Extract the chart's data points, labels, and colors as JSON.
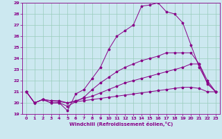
{
  "xlabel": "Windchill (Refroidissement éolien,°C)",
  "xlim": [
    -0.5,
    23.5
  ],
  "ylim": [
    19,
    29
  ],
  "xticks": [
    0,
    1,
    2,
    3,
    4,
    5,
    6,
    7,
    8,
    9,
    10,
    11,
    12,
    13,
    14,
    15,
    16,
    17,
    18,
    19,
    20,
    21,
    22,
    23
  ],
  "yticks": [
    19,
    20,
    21,
    22,
    23,
    24,
    25,
    26,
    27,
    28,
    29
  ],
  "bg_color": "#cce8f0",
  "line_color": "#880088",
  "grid_color": "#99ccbb",
  "lines": [
    {
      "x": [
        0,
        1,
        2,
        3,
        4,
        5,
        6,
        7,
        8,
        9,
        10,
        11,
        12,
        13,
        14,
        15,
        16,
        17,
        18,
        19,
        20,
        21,
        22,
        23
      ],
      "y": [
        21,
        20,
        20.3,
        20,
        20,
        19.3,
        20.8,
        21.2,
        22.2,
        23.2,
        24.8,
        26.0,
        26.5,
        27.0,
        28.7,
        28.8,
        29.0,
        28.2,
        28.0,
        27.2,
        25.2,
        23.2,
        21.8,
        21.0
      ]
    },
    {
      "x": [
        0,
        1,
        2,
        3,
        4,
        5,
        6,
        7,
        8,
        9,
        10,
        11,
        12,
        13,
        14,
        15,
        16,
        17,
        18,
        19,
        20,
        21,
        22,
        23
      ],
      "y": [
        21,
        20,
        20.3,
        20,
        20,
        19.7,
        20.1,
        20.5,
        21.2,
        21.8,
        22.3,
        22.8,
        23.2,
        23.5,
        23.8,
        24.0,
        24.2,
        24.5,
        24.5,
        24.5,
        24.5,
        23.5,
        21.7,
        21.0
      ]
    },
    {
      "x": [
        0,
        1,
        2,
        3,
        4,
        5,
        6,
        7,
        8,
        9,
        10,
        11,
        12,
        13,
        14,
        15,
        16,
        17,
        18,
        19,
        20,
        21,
        22,
        23
      ],
      "y": [
        21,
        20,
        20.3,
        20.2,
        20.1,
        20.0,
        20.2,
        20.4,
        20.6,
        20.9,
        21.2,
        21.5,
        21.8,
        22.0,
        22.2,
        22.4,
        22.6,
        22.8,
        23.0,
        23.2,
        23.5,
        23.5,
        22.0,
        21.0
      ]
    },
    {
      "x": [
        0,
        1,
        2,
        3,
        4,
        5,
        6,
        7,
        8,
        9,
        10,
        11,
        12,
        13,
        14,
        15,
        16,
        17,
        18,
        19,
        20,
        21,
        22,
        23
      ],
      "y": [
        21,
        20,
        20.3,
        20.2,
        20.2,
        20.0,
        20.1,
        20.2,
        20.3,
        20.4,
        20.5,
        20.6,
        20.7,
        20.8,
        20.9,
        21.0,
        21.1,
        21.2,
        21.3,
        21.4,
        21.4,
        21.3,
        21.0,
        21.0
      ]
    }
  ]
}
